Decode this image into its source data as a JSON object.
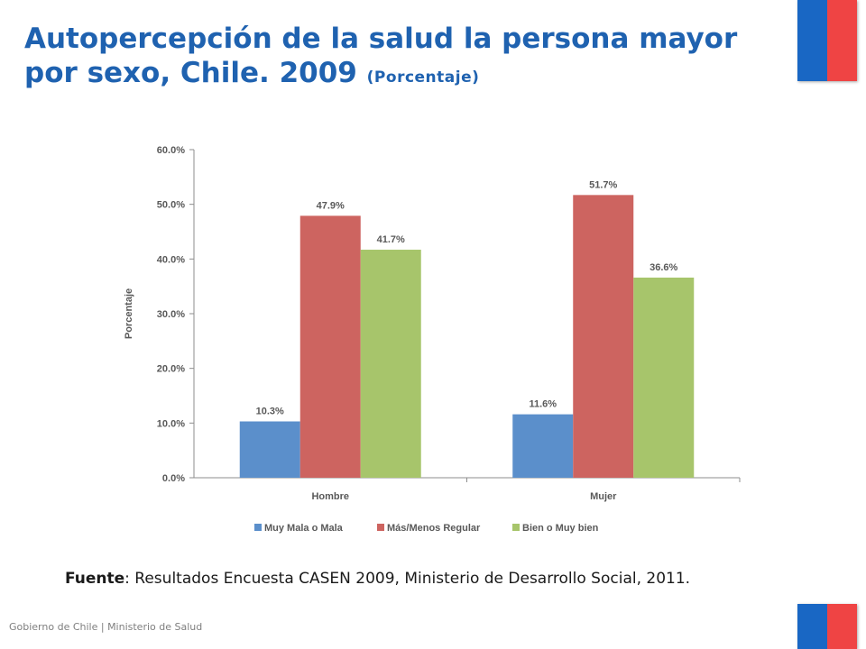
{
  "slide": {
    "title_main": "Autopercepción de la salud la persona mayor por sexo, Chile. 2009",
    "title_sub": "(Porcentaje)",
    "source_label": "Fuente",
    "source_text": ": Resultados Encuesta CASEN 2009, Ministerio de Desarrollo Social, 2011.",
    "footer": "Gobierno de Chile | Ministerio de Salud"
  },
  "colors": {
    "title": "#1f62b0",
    "flag_blue": "#1967c4",
    "flag_red": "#ef4444"
  },
  "chart_data": {
    "type": "bar",
    "title": "",
    "xlabel": "",
    "ylabel": "Porcentaje",
    "ylim": [
      0,
      60
    ],
    "yticks": [
      "0.0%",
      "10.0%",
      "20.0%",
      "30.0%",
      "40.0%",
      "50.0%",
      "60.0%"
    ],
    "categories": [
      "Hombre",
      "Mujer"
    ],
    "series": [
      {
        "name": "Muy Mala o Mala",
        "color": "#5b8fcb",
        "values": [
          10.3,
          11.6
        ],
        "labels": [
          "10.3%",
          "11.6%"
        ]
      },
      {
        "name": "Más/Menos Regular",
        "color": "#cd6460",
        "values": [
          47.9,
          51.7
        ],
        "labels": [
          "47.9%",
          "51.7%"
        ]
      },
      {
        "name": "Bien o Muy bien",
        "color": "#a7c56b",
        "values": [
          41.7,
          36.6
        ],
        "labels": [
          "41.7%",
          "36.6%"
        ]
      }
    ],
    "legend": "bottom",
    "grid": false
  }
}
